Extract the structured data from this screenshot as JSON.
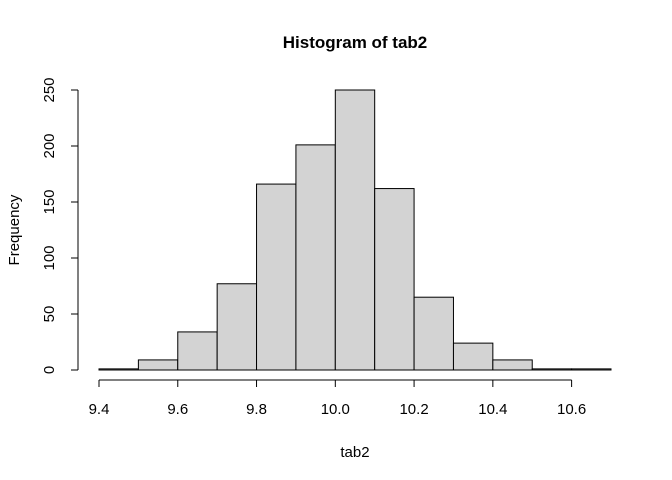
{
  "chart_data": {
    "type": "bar",
    "title": "Histogram of tab2",
    "xlabel": "tab2",
    "ylabel": "Frequency",
    "bin_edges": [
      9.4,
      9.5,
      9.6,
      9.7,
      9.8,
      9.9,
      10.0,
      10.1,
      10.2,
      10.3,
      10.4,
      10.5,
      10.6,
      10.7
    ],
    "values": [
      1,
      9,
      34,
      77,
      166,
      201,
      250,
      162,
      65,
      24,
      9,
      1,
      1
    ],
    "xlim": [
      9.4,
      10.7
    ],
    "ylim": [
      0,
      250
    ],
    "x_ticks": [
      "9.4",
      "9.6",
      "9.8",
      "10.0",
      "10.2",
      "10.4",
      "10.6"
    ],
    "y_ticks": [
      "0",
      "50",
      "100",
      "150",
      "200",
      "250"
    ],
    "bar_fill": "#d3d3d3",
    "bar_stroke": "#000000",
    "grid": false,
    "legend": "none"
  }
}
